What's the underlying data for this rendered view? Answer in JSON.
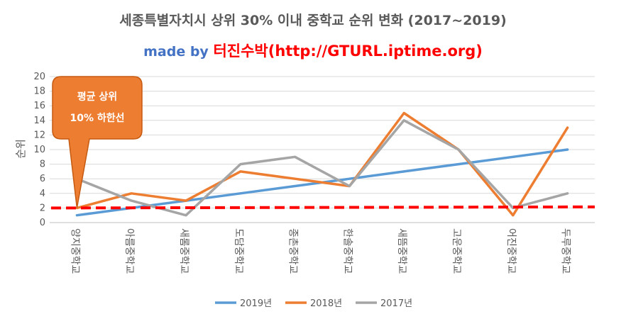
{
  "chart_data": {
    "type": "line",
    "title": "세종특별자치시 상위 30% 이내 중학교 순위 변화 (2017~2019)",
    "subtitle": {
      "made_by": "made by",
      "author": "터진수박(http://GTURL.iptime.org)"
    },
    "ylabel": "순위",
    "xlabel": "",
    "ylim": [
      0,
      20
    ],
    "yticks": [
      0,
      2,
      4,
      6,
      8,
      10,
      12,
      14,
      16,
      18,
      20
    ],
    "grid": true,
    "legend_position": "bottom",
    "categories": [
      "양지중학교",
      "아름중학교",
      "새롬중학교",
      "도담중학교",
      "종촌중학교",
      "한솔중학교",
      "새뜸중학교",
      "고운중학교",
      "어진중학교",
      "두루중학교"
    ],
    "series": [
      {
        "name": "2019년",
        "color": "#5B9BD5",
        "values": [
          1,
          2,
          3,
          4,
          5,
          6,
          7,
          8,
          9,
          10
        ]
      },
      {
        "name": "2018년",
        "color": "#ED7D31",
        "values": [
          2,
          4,
          3,
          7,
          6,
          5,
          15,
          10,
          1,
          13
        ]
      },
      {
        "name": "2017년",
        "color": "#A5A5A5",
        "values": [
          6,
          3,
          1,
          8,
          9,
          5,
          14,
          10,
          2,
          4
        ]
      }
    ],
    "threshold": {
      "value": 2,
      "color": "#FF0000",
      "style": "dashed"
    },
    "annotation": {
      "lines": [
        "평균 상위",
        "10% 하한선"
      ],
      "fill": "#ED7D31",
      "text_color": "#FFFFFF"
    }
  }
}
